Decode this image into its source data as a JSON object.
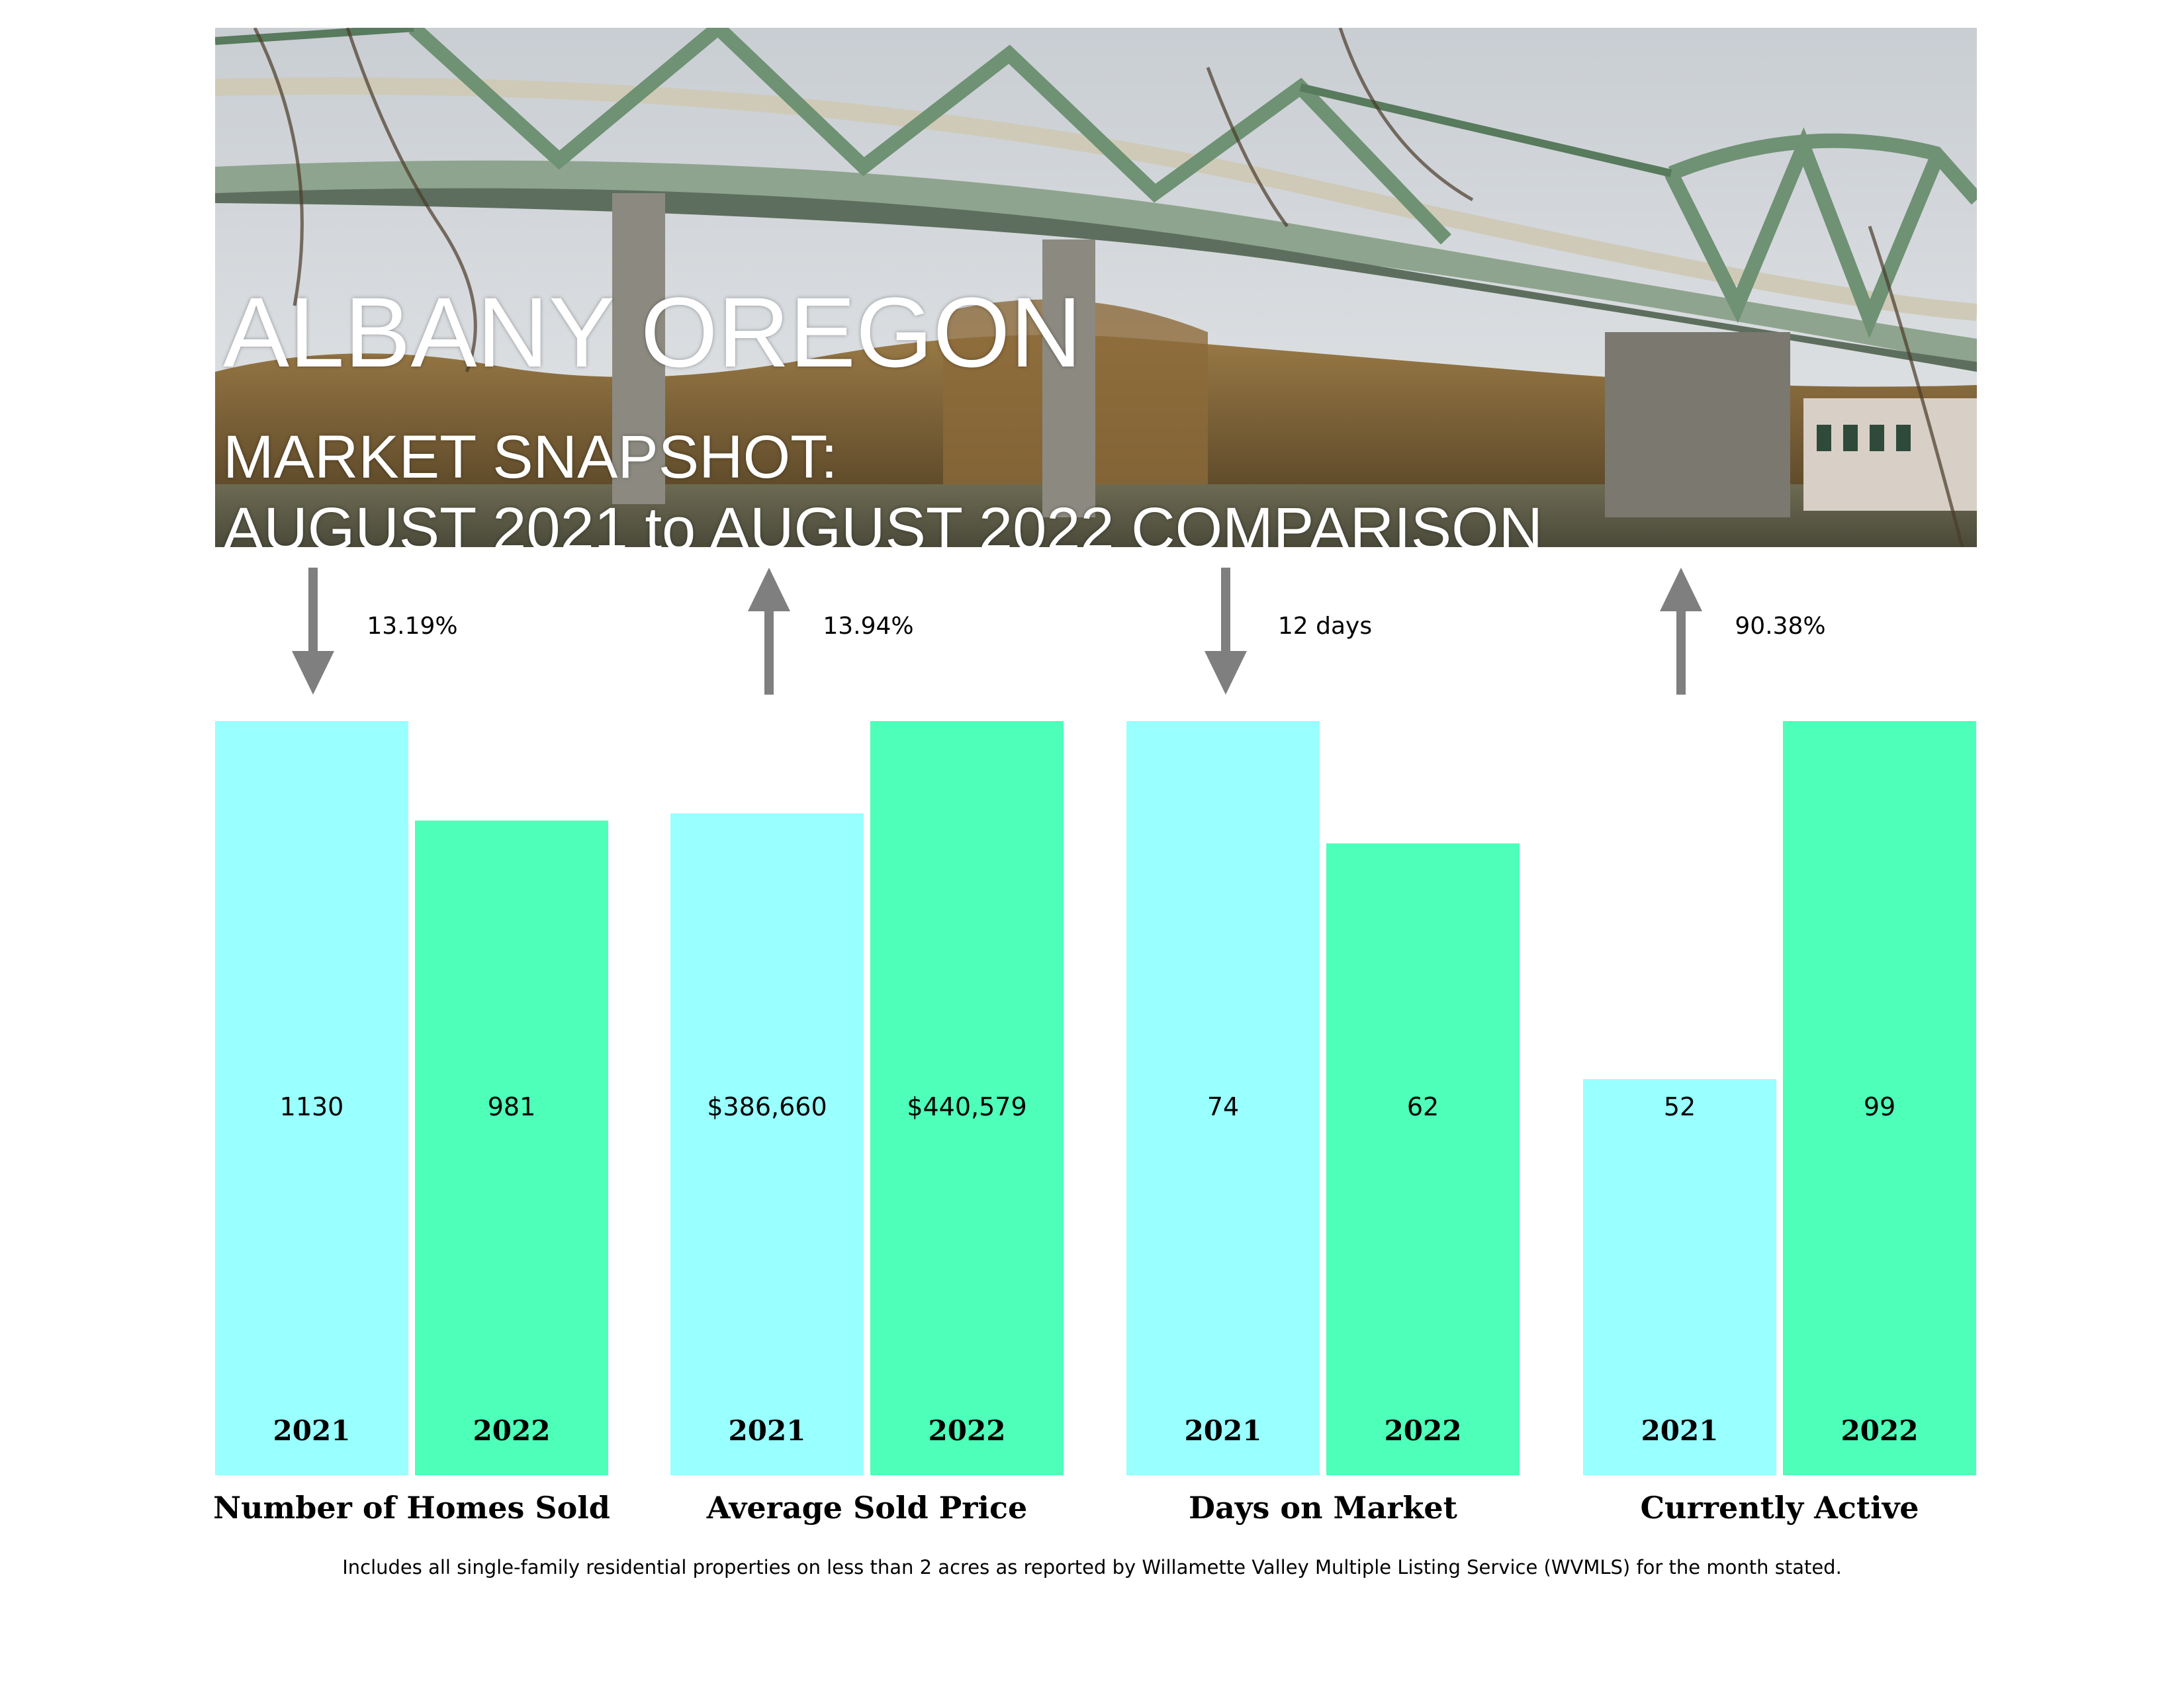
{
  "header": {
    "title": "ALBANY OREGON",
    "subtitle_line1": "MARKET SNAPSHOT:",
    "subtitle_line2": "AUGUST 2021 to AUGUST 2022 COMPARISON"
  },
  "chart_data": {
    "type": "bar",
    "colors": {
      "2021": "#99ffff",
      "2022": "#4dffb8",
      "arrow": "#7f7f7f"
    },
    "groups": [
      {
        "name": "Number of Homes Sold",
        "change": {
          "direction": "down",
          "label": "13.19%"
        },
        "bars": [
          {
            "year": "2021",
            "value": 1130,
            "label": "1130"
          },
          {
            "year": "2022",
            "value": 981,
            "label": "981"
          }
        ]
      },
      {
        "name": "Average Sold Price",
        "change": {
          "direction": "up",
          "label": "13.94%"
        },
        "bars": [
          {
            "year": "2021",
            "value": 386660,
            "label": "$386,660"
          },
          {
            "year": "2022",
            "value": 440579,
            "label": "$440,579"
          }
        ]
      },
      {
        "name": "Days on Market",
        "change": {
          "direction": "down",
          "label": "12 days"
        },
        "bars": [
          {
            "year": "2021",
            "value": 74,
            "label": "74"
          },
          {
            "year": "2022",
            "value": 62,
            "label": "62"
          }
        ]
      },
      {
        "name": "Currently Active",
        "change": {
          "direction": "up",
          "label": "90.38%"
        },
        "bars": [
          {
            "year": "2021",
            "value": 52,
            "label": "52"
          },
          {
            "year": "2022",
            "value": 99,
            "label": "99"
          }
        ]
      }
    ]
  },
  "footnote": "Includes all single-family residential properties on less than 2 acres as reported by Willamette Valley Multiple Listing Service (WVMLS) for the month stated."
}
